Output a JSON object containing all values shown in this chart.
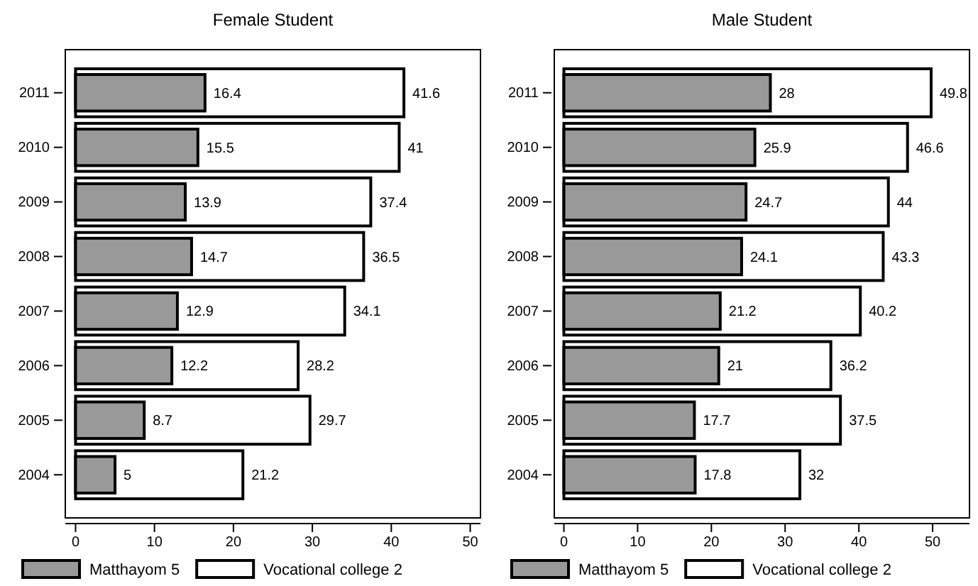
{
  "chart_data": [
    {
      "type": "bar",
      "title": "Female Student",
      "orientation": "horizontal",
      "categories": [
        "2011",
        "2010",
        "2009",
        "2008",
        "2007",
        "2006",
        "2005",
        "2004"
      ],
      "series": [
        {
          "name": "Matthayom 5",
          "color": "#999999",
          "values": [
            16.4,
            15.5,
            13.9,
            14.7,
            12.9,
            12.2,
            8.7,
            5
          ]
        },
        {
          "name": "Vocational college 2",
          "color": "#ffffff",
          "values": [
            41.6,
            41,
            37.4,
            36.5,
            34.1,
            28.2,
            29.7,
            21.2
          ]
        }
      ],
      "xlim": [
        -1.3,
        51.3
      ],
      "xticks": [
        0,
        10,
        20,
        30,
        40,
        50
      ],
      "data_labels": true,
      "legend": "bottom",
      "grid": false
    },
    {
      "type": "bar",
      "title": "Male Student",
      "orientation": "horizontal",
      "categories": [
        "2011",
        "2010",
        "2009",
        "2008",
        "2007",
        "2006",
        "2005",
        "2004"
      ],
      "series": [
        {
          "name": "Matthayom 5",
          "color": "#999999",
          "values": [
            28,
            25.9,
            24.7,
            24.1,
            21.2,
            21,
            17.7,
            17.8
          ]
        },
        {
          "name": "Vocational college 2",
          "color": "#ffffff",
          "values": [
            49.8,
            46.6,
            44,
            43.3,
            40.2,
            36.2,
            37.5,
            32
          ]
        }
      ],
      "xlim": [
        -1.3,
        55
      ],
      "xticks": [
        0,
        10,
        20,
        30,
        40,
        50
      ],
      "data_labels": true,
      "legend": "bottom",
      "grid": false
    }
  ]
}
